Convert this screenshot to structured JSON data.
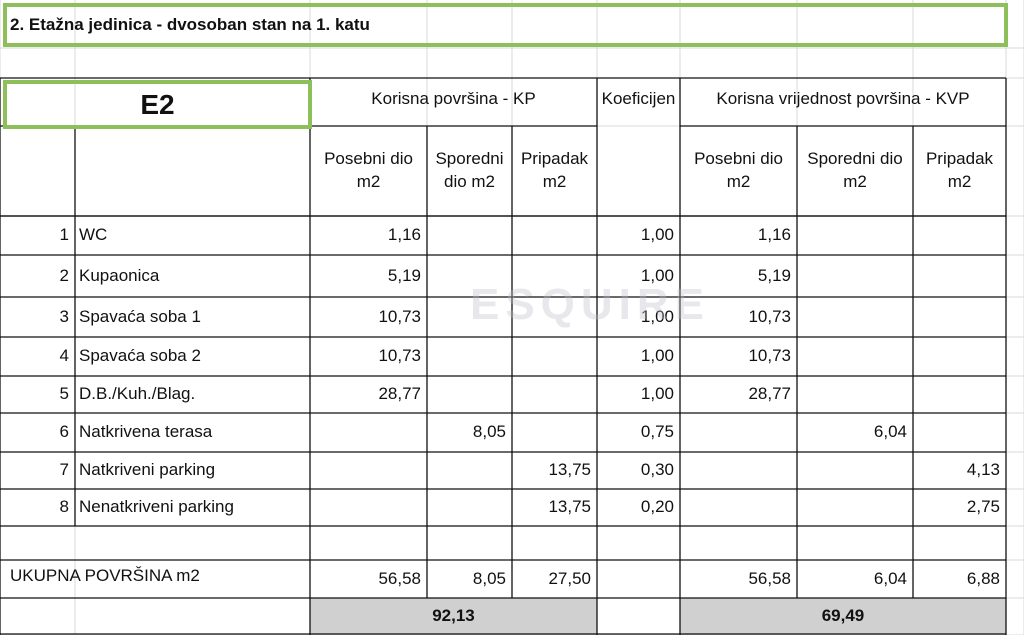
{
  "title": "2. Etažna jedinica - dvosoban stan na 1. katu",
  "unit_label": "E2",
  "headers": {
    "kp": "Korisna površina - KP",
    "coef": "Koeficijen",
    "kvp": "Korisna vrijednost površina - KVP",
    "kp_cols": [
      "Posebni dio m2",
      "Sporedni dio m2",
      "Pripadak m2"
    ],
    "kvp_cols": [
      "Posebni dio m2",
      "Sporedni dio m2",
      "Pripadak m2"
    ]
  },
  "rows": [
    [
      "1",
      "WC",
      "1,16",
      null,
      null,
      "1,00",
      "1,16",
      null,
      null
    ],
    [
      "2",
      "Kupaonica",
      "5,19",
      null,
      null,
      "1,00",
      "5,19",
      null,
      null
    ],
    [
      "3",
      "Spavaća soba 1",
      "10,73",
      null,
      null,
      "1,00",
      "10,73",
      null,
      null
    ],
    [
      "4",
      "Spavaća soba 2",
      "10,73",
      null,
      null,
      "1,00",
      "10,73",
      null,
      null
    ],
    [
      "5",
      "D.B./Kuh./Blag.",
      "28,77",
      null,
      null,
      "1,00",
      "28,77",
      null,
      null
    ],
    [
      "6",
      "Natkrivena terasa",
      null,
      "8,05",
      null,
      "0,75",
      null,
      "6,04",
      null
    ],
    [
      "7",
      "Natkriveni parking",
      null,
      null,
      "13,75",
      "0,30",
      null,
      null,
      "4,13"
    ],
    [
      "8",
      "Nenatkriveni parking",
      null,
      null,
      "13,75",
      "0,20",
      null,
      null,
      "2,75"
    ]
  ],
  "total": {
    "label": "UKUPNA POVRŠINA m2",
    "values": [
      "56,58",
      "8,05",
      "27,50",
      null,
      "56,58",
      "6,04",
      "6,88"
    ],
    "sums": [
      "92,13",
      "69,49"
    ]
  },
  "watermark": "ESQUIRE"
}
